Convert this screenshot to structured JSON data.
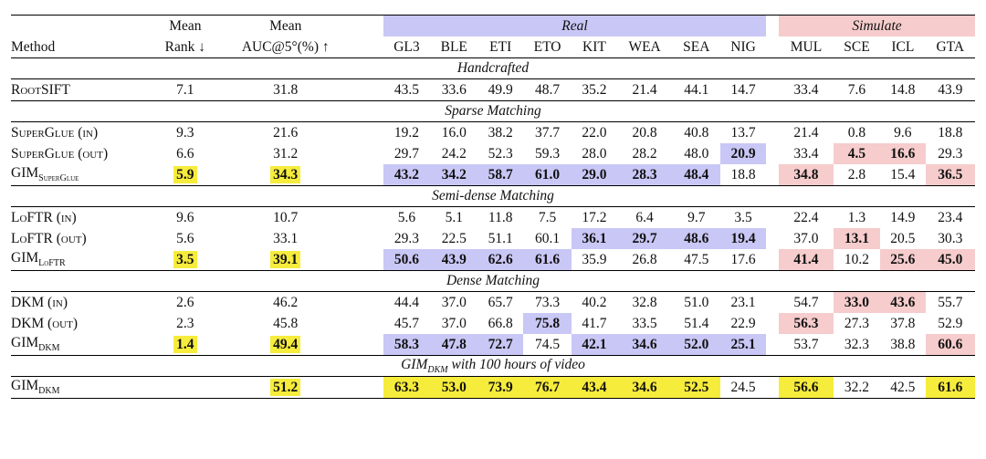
{
  "header": {
    "method": "Method",
    "mean_rank_1": "Mean",
    "mean_rank_2": "Rank ↓",
    "mean_auc_1": "Mean",
    "mean_auc_2": "AUC@5°(%) ↑",
    "group_real": "Real",
    "group_sim": "Simulate",
    "columns": [
      "GL3",
      "BLE",
      "ETI",
      "ETO",
      "KIT",
      "WEA",
      "SEA",
      "NIG",
      "MUL",
      "SCE",
      "ICL",
      "GTA"
    ]
  },
  "sections": {
    "handcrafted": "Handcrafted",
    "sparse": "Sparse Matching",
    "semidense": "Semi-dense Matching",
    "dense": "Dense Matching",
    "video_prefix": "GIM",
    "video_sub": "DKM",
    "video_suffix": " with 100 hours of video"
  },
  "rows": {
    "rootsift": {
      "name": "RootSIFT",
      "rank": "7.1",
      "auc": "31.8",
      "v": [
        "43.5",
        "33.6",
        "49.9",
        "48.7",
        "35.2",
        "21.4",
        "44.1",
        "14.7",
        "33.4",
        "7.6",
        "14.8",
        "43.9"
      ]
    },
    "sg_in": {
      "name": "SuperGlue (in)",
      "rank": "9.3",
      "auc": "21.6",
      "v": [
        "19.2",
        "16.0",
        "38.2",
        "37.7",
        "22.0",
        "20.8",
        "40.8",
        "13.7",
        "21.4",
        "0.8",
        "9.6",
        "18.8"
      ]
    },
    "sg_out": {
      "name": "SuperGlue (out)",
      "rank": "6.6",
      "auc": "31.2",
      "v": [
        "29.7",
        "24.2",
        "52.3",
        "59.3",
        "28.0",
        "28.2",
        "48.0",
        "20.9",
        "33.4",
        "4.5",
        "16.6",
        "29.3"
      ]
    },
    "gim_sg": {
      "name": "GIM",
      "sub": "SuperGlue",
      "rank": "5.9",
      "auc": "34.3",
      "v": [
        "43.2",
        "34.2",
        "58.7",
        "61.0",
        "29.0",
        "28.3",
        "48.4",
        "18.8",
        "34.8",
        "2.8",
        "15.4",
        "36.5"
      ]
    },
    "loftr_in": {
      "name": "LoFTR (in)",
      "rank": "9.6",
      "auc": "10.7",
      "v": [
        "5.6",
        "5.1",
        "11.8",
        "7.5",
        "17.2",
        "6.4",
        "9.7",
        "3.5",
        "22.4",
        "1.3",
        "14.9",
        "23.4"
      ]
    },
    "loftr_out": {
      "name": "LoFTR (out)",
      "rank": "5.6",
      "auc": "33.1",
      "v": [
        "29.3",
        "22.5",
        "51.1",
        "60.1",
        "36.1",
        "29.7",
        "48.6",
        "19.4",
        "37.0",
        "13.1",
        "20.5",
        "30.3"
      ]
    },
    "gim_loftr": {
      "name": "GIM",
      "sub": "LoFTR",
      "rank": "3.5",
      "auc": "39.1",
      "v": [
        "50.6",
        "43.9",
        "62.6",
        "61.6",
        "35.9",
        "26.8",
        "47.5",
        "17.6",
        "41.4",
        "10.2",
        "25.6",
        "45.0"
      ]
    },
    "dkm_in": {
      "name": "DKM (in)",
      "rank": "2.6",
      "auc": "46.2",
      "v": [
        "44.4",
        "37.0",
        "65.7",
        "73.3",
        "40.2",
        "32.8",
        "51.0",
        "23.1",
        "54.7",
        "33.0",
        "43.6",
        "55.7"
      ]
    },
    "dkm_out": {
      "name": "DKM (out)",
      "rank": "2.3",
      "auc": "45.8",
      "v": [
        "45.7",
        "37.0",
        "66.8",
        "75.8",
        "41.7",
        "33.5",
        "51.4",
        "22.9",
        "56.3",
        "27.3",
        "37.8",
        "52.9"
      ]
    },
    "gim_dkm": {
      "name": "GIM",
      "sub": "DKM",
      "rank": "1.4",
      "auc": "49.4",
      "v": [
        "58.3",
        "47.8",
        "72.7",
        "74.5",
        "42.1",
        "34.6",
        "52.0",
        "25.1",
        "53.7",
        "32.3",
        "38.8",
        "60.6"
      ]
    },
    "gim_dkm_video": {
      "name": "GIM",
      "sub": "DKM",
      "rank": "",
      "auc": "51.2",
      "v": [
        "63.3",
        "53.0",
        "73.9",
        "76.7",
        "43.4",
        "34.6",
        "52.5",
        "24.5",
        "56.6",
        "32.2",
        "42.5",
        "61.6"
      ]
    }
  }
}
